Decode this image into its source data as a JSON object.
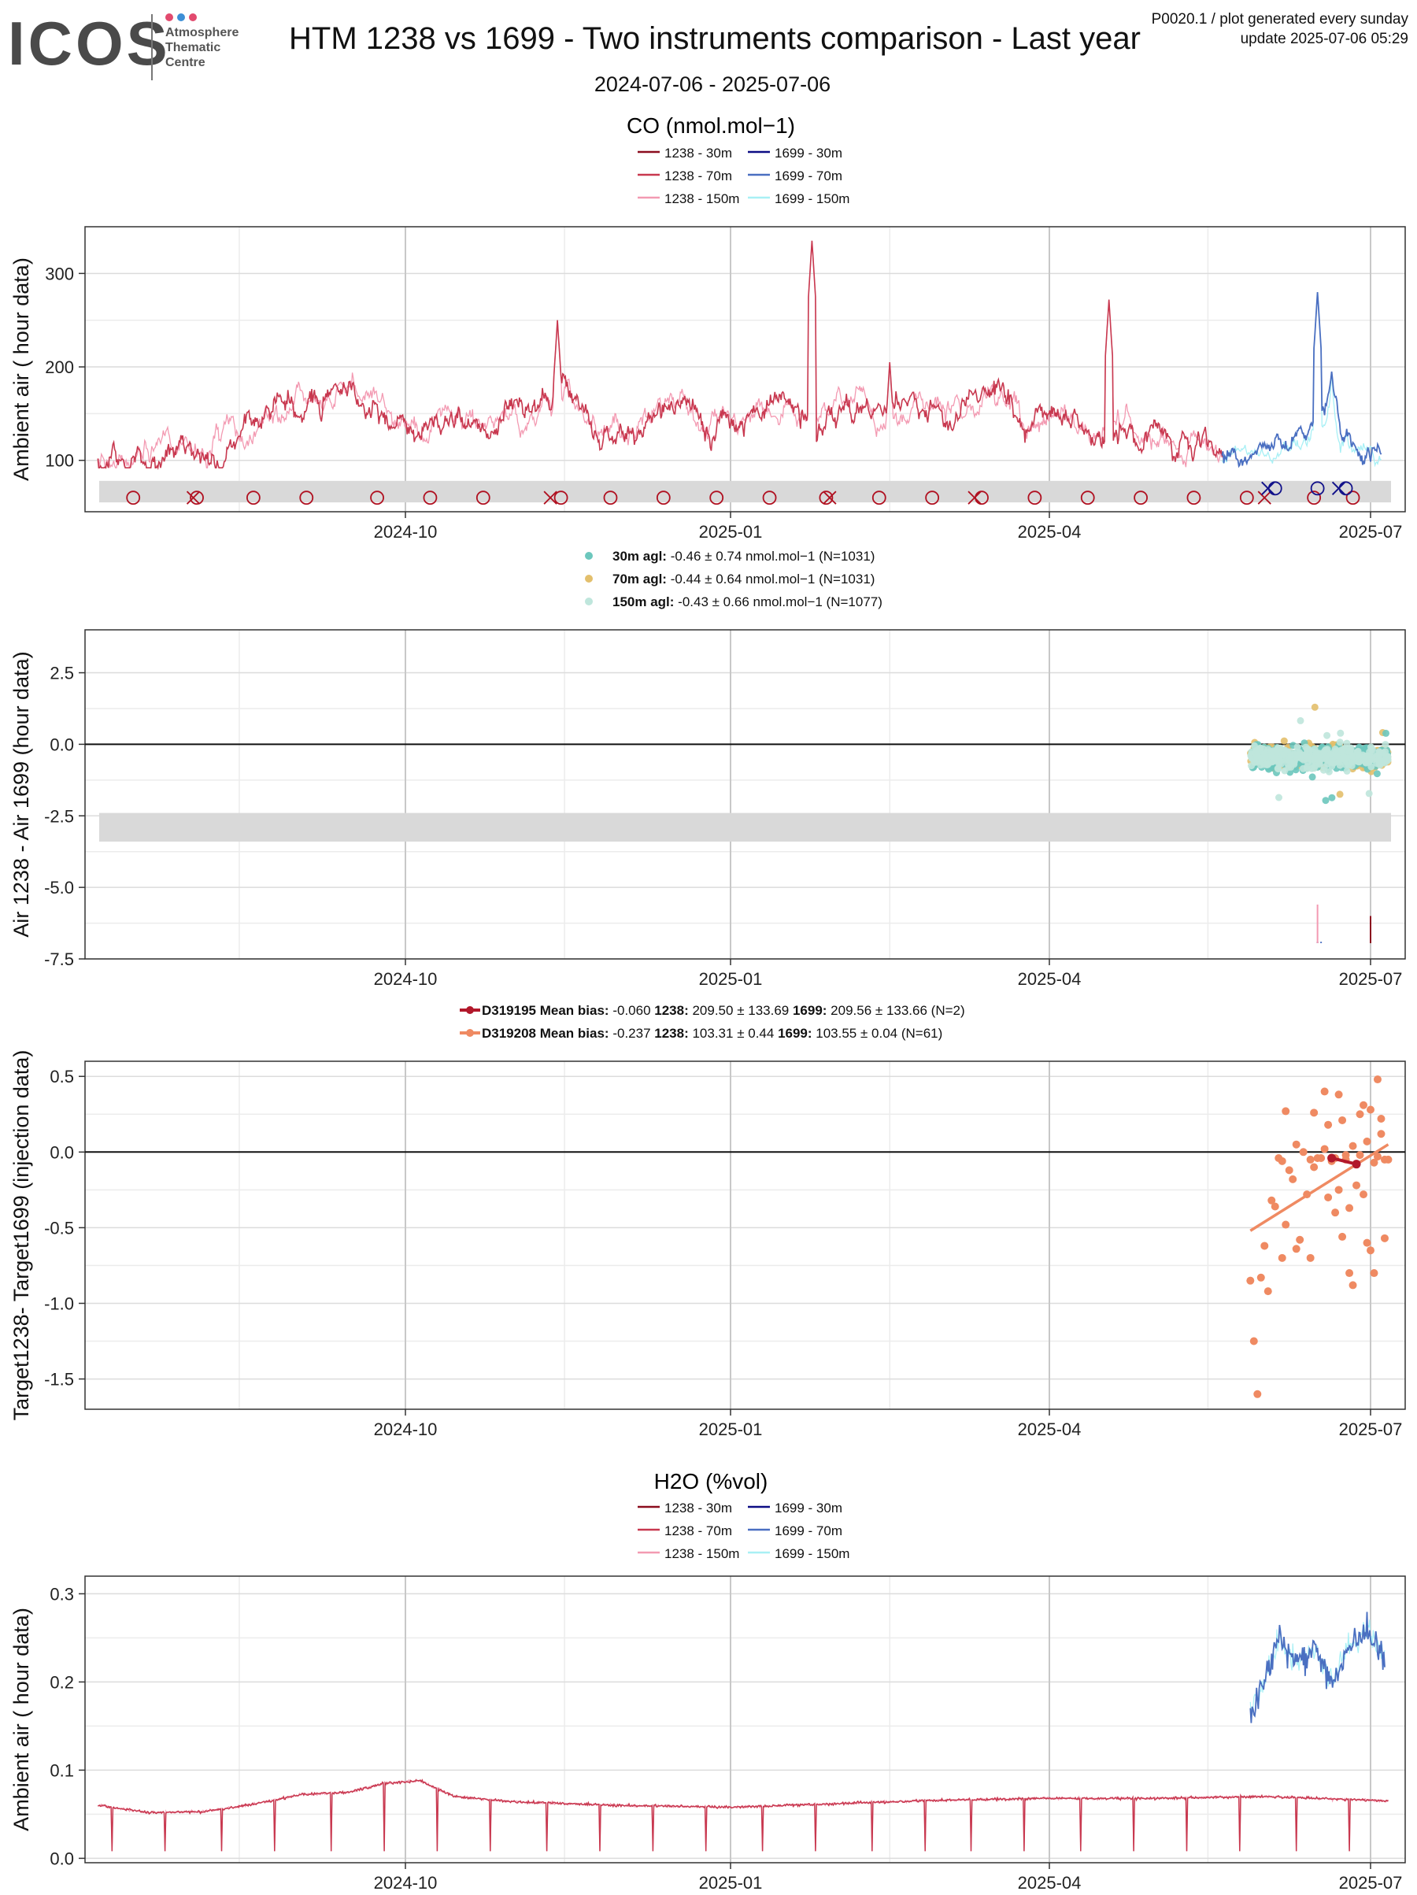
{
  "header": {
    "logo_text": "ICOS",
    "logo_sub": [
      "Atmosphere",
      "Thematic",
      "Centre"
    ],
    "logo_dot_colors": [
      "#e24a6e",
      "#3d8fd6",
      "#e24a6e"
    ],
    "title": "HTM 1238 vs 1699 - Two instruments comparison - Last year",
    "subtitle": "2024-07-06 - 2025-07-06",
    "note_line1": "P0020.1 / plot generated every sunday",
    "note_line2": "update  2025-07-06 05:29"
  },
  "colors": {
    "c1238_30": "#8b0c1e",
    "c1238_70": "#c8384f",
    "c1238_150": "#f39ab2",
    "c1699_30": "#0c0c84",
    "c1699_70": "#4a6fc1",
    "c1699_150": "#a8f0f5",
    "dot_30": "#6cc7bd",
    "dot_70": "#e3bf6c",
    "dot_150": "#bfe6dc",
    "d319195": "#b2182b",
    "d319208": "#ef8a62",
    "band": "#d9d9d9",
    "grid": "#e6e6e6"
  },
  "x_ticks": [
    "2024-10",
    "2025-01",
    "2025-04",
    "2025-07"
  ],
  "chart_data": [
    {
      "type": "line",
      "title": "CO (nmol.mol−1)",
      "ylabel": "Ambient air ( hour data)",
      "x_range": [
        "2024-07-06",
        "2025-07-06"
      ],
      "ylim": [
        45,
        350
      ],
      "yticks": [
        100,
        200,
        300
      ],
      "series": [
        {
          "name": "1238 - 30m"
        },
        {
          "name": "1238 - 70m"
        },
        {
          "name": "1238 - 150m"
        },
        {
          "name": "1699 - 30m"
        },
        {
          "name": "1699 - 70m"
        },
        {
          "name": "1699 - 150m"
        }
      ],
      "series_1238_points": [
        [
          "2024-07-06",
          100
        ],
        [
          "2024-07-20",
          105
        ],
        [
          "2024-08-01",
          110
        ],
        [
          "2024-08-15",
          125
        ],
        [
          "2024-08-25",
          150
        ],
        [
          "2024-09-05",
          170
        ],
        [
          "2024-09-15",
          180
        ],
        [
          "2024-09-25",
          150
        ],
        [
          "2024-10-05",
          135
        ],
        [
          "2024-10-15",
          140
        ],
        [
          "2024-10-25",
          135
        ],
        [
          "2024-11-05",
          150
        ],
        [
          "2024-11-15",
          175
        ],
        [
          "2024-11-25",
          130
        ],
        [
          "2024-12-05",
          140
        ],
        [
          "2024-12-15",
          160
        ],
        [
          "2024-12-25",
          135
        ],
        [
          "2025-01-05",
          150
        ],
        [
          "2025-01-15",
          170
        ],
        [
          "2025-01-25",
          140
        ],
        [
          "2025-02-05",
          165
        ],
        [
          "2025-02-15",
          150
        ],
        [
          "2025-02-25",
          150
        ],
        [
          "2025-03-05",
          145
        ],
        [
          "2025-03-15",
          170
        ],
        [
          "2025-03-25",
          145
        ],
        [
          "2025-04-05",
          140
        ],
        [
          "2025-04-15",
          130
        ],
        [
          "2025-04-25",
          125
        ],
        [
          "2025-05-05",
          120
        ],
        [
          "2025-05-15",
          110
        ],
        [
          "2025-05-20",
          105
        ]
      ],
      "series_1699_points": [
        [
          "2025-05-20",
          105
        ],
        [
          "2025-05-28",
          112
        ],
        [
          "2025-06-05",
          115
        ],
        [
          "2025-06-12",
          120
        ],
        [
          "2025-06-18",
          150
        ],
        [
          "2025-06-20",
          180
        ],
        [
          "2025-06-22",
          130
        ],
        [
          "2025-06-28",
          115
        ],
        [
          "2025-07-04",
          118
        ]
      ],
      "peaks_1238": [
        [
          "2024-11-13",
          250
        ],
        [
          "2025-01-24",
          335
        ],
        [
          "2025-04-18",
          272
        ],
        [
          "2025-02-15",
          205
        ]
      ],
      "peaks_1699": [
        [
          "2025-06-16",
          280
        ],
        [
          "2025-06-20",
          195
        ]
      ],
      "flag_band": [
        55,
        78
      ],
      "markers_circle_1238": [
        "2024-07-16",
        "2024-08-03",
        "2024-08-19",
        "2024-09-03",
        "2024-09-23",
        "2024-10-08",
        "2024-10-23",
        "2024-11-14",
        "2024-11-28",
        "2024-12-13",
        "2024-12-28",
        "2025-01-12",
        "2025-01-28",
        "2025-02-12",
        "2025-02-27",
        "2025-03-13",
        "2025-03-28",
        "2025-04-12",
        "2025-04-27",
        "2025-05-12",
        "2025-05-27",
        "2025-06-15",
        "2025-06-26"
      ],
      "markers_x_1238": [
        "2024-08-02",
        "2024-11-11",
        "2025-01-29",
        "2025-03-11",
        "2025-06-01"
      ],
      "markers_circle_1699": [
        "2025-06-04",
        "2025-06-16",
        "2025-06-24"
      ],
      "markers_x_1699": [
        "2025-06-02",
        "2025-06-22"
      ]
    },
    {
      "type": "scatter",
      "ylabel": "Air 1238 - Air 1699 (hour data)",
      "ylim": [
        -7.5,
        4.0
      ],
      "yticks": [
        2.5,
        0.0,
        -2.5,
        -5.0,
        -7.5
      ],
      "ytick_labels": [
        "2.5",
        "0.0",
        "-2.5",
        "-5.0",
        "-7.5"
      ],
      "flag_band": [
        -3.4,
        -2.4
      ],
      "series": [
        {
          "label": "30m agl:",
          "stat": "-0.46 ± 0.74 nmol.mol−1",
          "n": "(N=1031)",
          "center": -0.46,
          "spread": 0.74
        },
        {
          "label": "70m agl:",
          "stat": "-0.44 ± 0.64 nmol.mol−1",
          "n": "(N=1031)",
          "center": -0.44,
          "spread": 0.64
        },
        {
          "label": "150m agl:",
          "stat": "-0.43 ± 0.66 nmol.mol−1",
          "n": "(N=1077)",
          "center": -0.43,
          "spread": 0.66
        }
      ],
      "x_range": [
        "2025-05-28",
        "2025-07-06"
      ],
      "spikes": [
        {
          "date": "2025-06-16",
          "value": -6.9,
          "color": "c1699_30"
        },
        {
          "date": "2025-06-17",
          "value": -6.9,
          "color": "c1699_70"
        },
        {
          "date": "2025-06-16",
          "value": -5.6,
          "color": "c1238_150"
        },
        {
          "date": "2025-07-01",
          "value": -6.0,
          "color": "c1238_30"
        }
      ]
    },
    {
      "type": "scatter",
      "ylabel": "Target1238- Target1699 (injection data)",
      "ylim": [
        -1.7,
        0.6
      ],
      "yticks": [
        0.5,
        0.0,
        -0.5,
        -1.0,
        -1.5
      ],
      "ytick_labels": [
        "0.5",
        "0.0",
        "-0.5",
        "-1.0",
        "-1.5"
      ],
      "series": [
        {
          "name": "D319195",
          "label": "Mean bias:",
          "bias": "-0.060",
          "s1238": "209.50 ± 133.69",
          "s1699": "209.56 ± 133.66",
          "n": "(N=2)",
          "points": [
            [
              "2025-06-20",
              -0.04
            ],
            [
              "2025-06-27",
              -0.08
            ]
          ]
        },
        {
          "name": "D319208",
          "label": "Mean bias:",
          "bias": "-0.237",
          "s1238": "103.31 ± 0.44",
          "s1699": "103.55 ± 0.04",
          "n": "(N=61)",
          "trend": [
            [
              "2025-05-28",
              -0.52
            ],
            [
              "2025-07-06",
              0.05
            ]
          ],
          "points": [
            [
              "2025-05-28",
              -0.85
            ],
            [
              "2025-05-29",
              -1.25
            ],
            [
              "2025-05-30",
              -1.6
            ],
            [
              "2025-05-31",
              -0.83
            ],
            [
              "2025-06-01",
              -0.62
            ],
            [
              "2025-06-02",
              -0.92
            ],
            [
              "2025-06-03",
              -0.32
            ],
            [
              "2025-06-04",
              -0.36
            ],
            [
              "2025-06-05",
              -0.04
            ],
            [
              "2025-06-06",
              -0.06
            ],
            [
              "2025-06-07",
              0.27
            ],
            [
              "2025-06-07",
              -0.48
            ],
            [
              "2025-06-08",
              -0.12
            ],
            [
              "2025-06-09",
              -0.18
            ],
            [
              "2025-06-10",
              -0.64
            ],
            [
              "2025-06-11",
              -0.58
            ],
            [
              "2025-06-12",
              0.0
            ],
            [
              "2025-06-13",
              -0.28
            ],
            [
              "2025-06-14",
              -0.05
            ],
            [
              "2025-06-15",
              0.26
            ],
            [
              "2025-06-15",
              -0.1
            ],
            [
              "2025-06-16",
              -0.04
            ],
            [
              "2025-06-17",
              -0.04
            ],
            [
              "2025-06-18",
              0.4
            ],
            [
              "2025-06-18",
              0.02
            ],
            [
              "2025-06-19",
              -0.3
            ],
            [
              "2025-06-20",
              -0.06
            ],
            [
              "2025-06-21",
              -0.04
            ],
            [
              "2025-06-22",
              0.38
            ],
            [
              "2025-06-22",
              -0.25
            ],
            [
              "2025-06-23",
              0.21
            ],
            [
              "2025-06-23",
              -0.56
            ],
            [
              "2025-06-24",
              -0.05
            ],
            [
              "2025-06-25",
              -0.8
            ],
            [
              "2025-06-25",
              -0.37
            ],
            [
              "2025-06-26",
              -0.88
            ],
            [
              "2025-06-26",
              0.04
            ],
            [
              "2025-06-27",
              -0.22
            ],
            [
              "2025-06-28",
              0.25
            ],
            [
              "2025-06-28",
              -0.02
            ],
            [
              "2025-06-29",
              0.31
            ],
            [
              "2025-06-29",
              -0.28
            ],
            [
              "2025-06-30",
              0.07
            ],
            [
              "2025-06-30",
              -0.6
            ],
            [
              "2025-07-01",
              0.28
            ],
            [
              "2025-07-01",
              -0.65
            ],
            [
              "2025-07-02",
              -0.07
            ],
            [
              "2025-07-02",
              -0.8
            ],
            [
              "2025-07-03",
              0.48
            ],
            [
              "2025-07-03",
              -0.03
            ],
            [
              "2025-07-04",
              0.22
            ],
            [
              "2025-07-04",
              0.12
            ],
            [
              "2025-07-05",
              -0.05
            ],
            [
              "2025-07-05",
              -0.57
            ],
            [
              "2025-07-06",
              -0.05
            ],
            [
              "2025-06-06",
              -0.7
            ],
            [
              "2025-06-10",
              0.05
            ],
            [
              "2025-06-14",
              -0.7
            ],
            [
              "2025-06-21",
              -0.4
            ],
            [
              "2025-06-24",
              -0.02
            ],
            [
              "2025-06-19",
              0.18
            ]
          ]
        }
      ]
    },
    {
      "type": "line",
      "title": "H2O (%vol)",
      "ylabel": "Ambient air ( hour data)",
      "ylim": [
        -0.005,
        0.32
      ],
      "yticks": [
        0.0,
        0.1,
        0.2,
        0.3
      ],
      "ytick_labels": [
        "0.0",
        "0.1",
        "0.2",
        "0.3"
      ],
      "series": [
        {
          "name": "1238 - 30m"
        },
        {
          "name": "1238 - 70m"
        },
        {
          "name": "1238 - 150m"
        },
        {
          "name": "1699 - 30m"
        },
        {
          "name": "1699 - 70m"
        },
        {
          "name": "1699 - 150m"
        }
      ],
      "series_1238_points": [
        [
          "2024-07-06",
          0.06
        ],
        [
          "2024-07-20",
          0.052
        ],
        [
          "2024-08-05",
          0.053
        ],
        [
          "2024-08-20",
          0.062
        ],
        [
          "2024-09-01",
          0.072
        ],
        [
          "2024-09-15",
          0.075
        ],
        [
          "2024-09-25",
          0.085
        ],
        [
          "2024-10-05",
          0.088
        ],
        [
          "2024-10-15",
          0.07
        ],
        [
          "2024-11-01",
          0.064
        ],
        [
          "2024-12-01",
          0.06
        ],
        [
          "2025-01-01",
          0.058
        ],
        [
          "2025-02-01",
          0.062
        ],
        [
          "2025-03-01",
          0.066
        ],
        [
          "2025-04-01",
          0.068
        ],
        [
          "2025-05-01",
          0.068
        ],
        [
          "2025-06-01",
          0.07
        ],
        [
          "2025-07-06",
          0.065
        ]
      ],
      "dips_1238": [
        "2024-07-10",
        "2024-07-25",
        "2024-08-10",
        "2024-08-25",
        "2024-09-10",
        "2024-09-25",
        "2024-10-10",
        "2024-10-25",
        "2024-11-10",
        "2024-11-25",
        "2024-12-10",
        "2024-12-25",
        "2025-01-10",
        "2025-01-25",
        "2025-02-10",
        "2025-02-25",
        "2025-03-10",
        "2025-03-25",
        "2025-04-10",
        "2025-04-25",
        "2025-05-10",
        "2025-05-25",
        "2025-06-10",
        "2025-06-25"
      ],
      "series_1699_points": [
        [
          "2025-05-28",
          0.16
        ],
        [
          "2025-06-01",
          0.2
        ],
        [
          "2025-06-05",
          0.25
        ],
        [
          "2025-06-10",
          0.22
        ],
        [
          "2025-06-15",
          0.24
        ],
        [
          "2025-06-20",
          0.2
        ],
        [
          "2025-06-25",
          0.24
        ],
        [
          "2025-06-30",
          0.26
        ],
        [
          "2025-07-05",
          0.23
        ]
      ]
    }
  ]
}
